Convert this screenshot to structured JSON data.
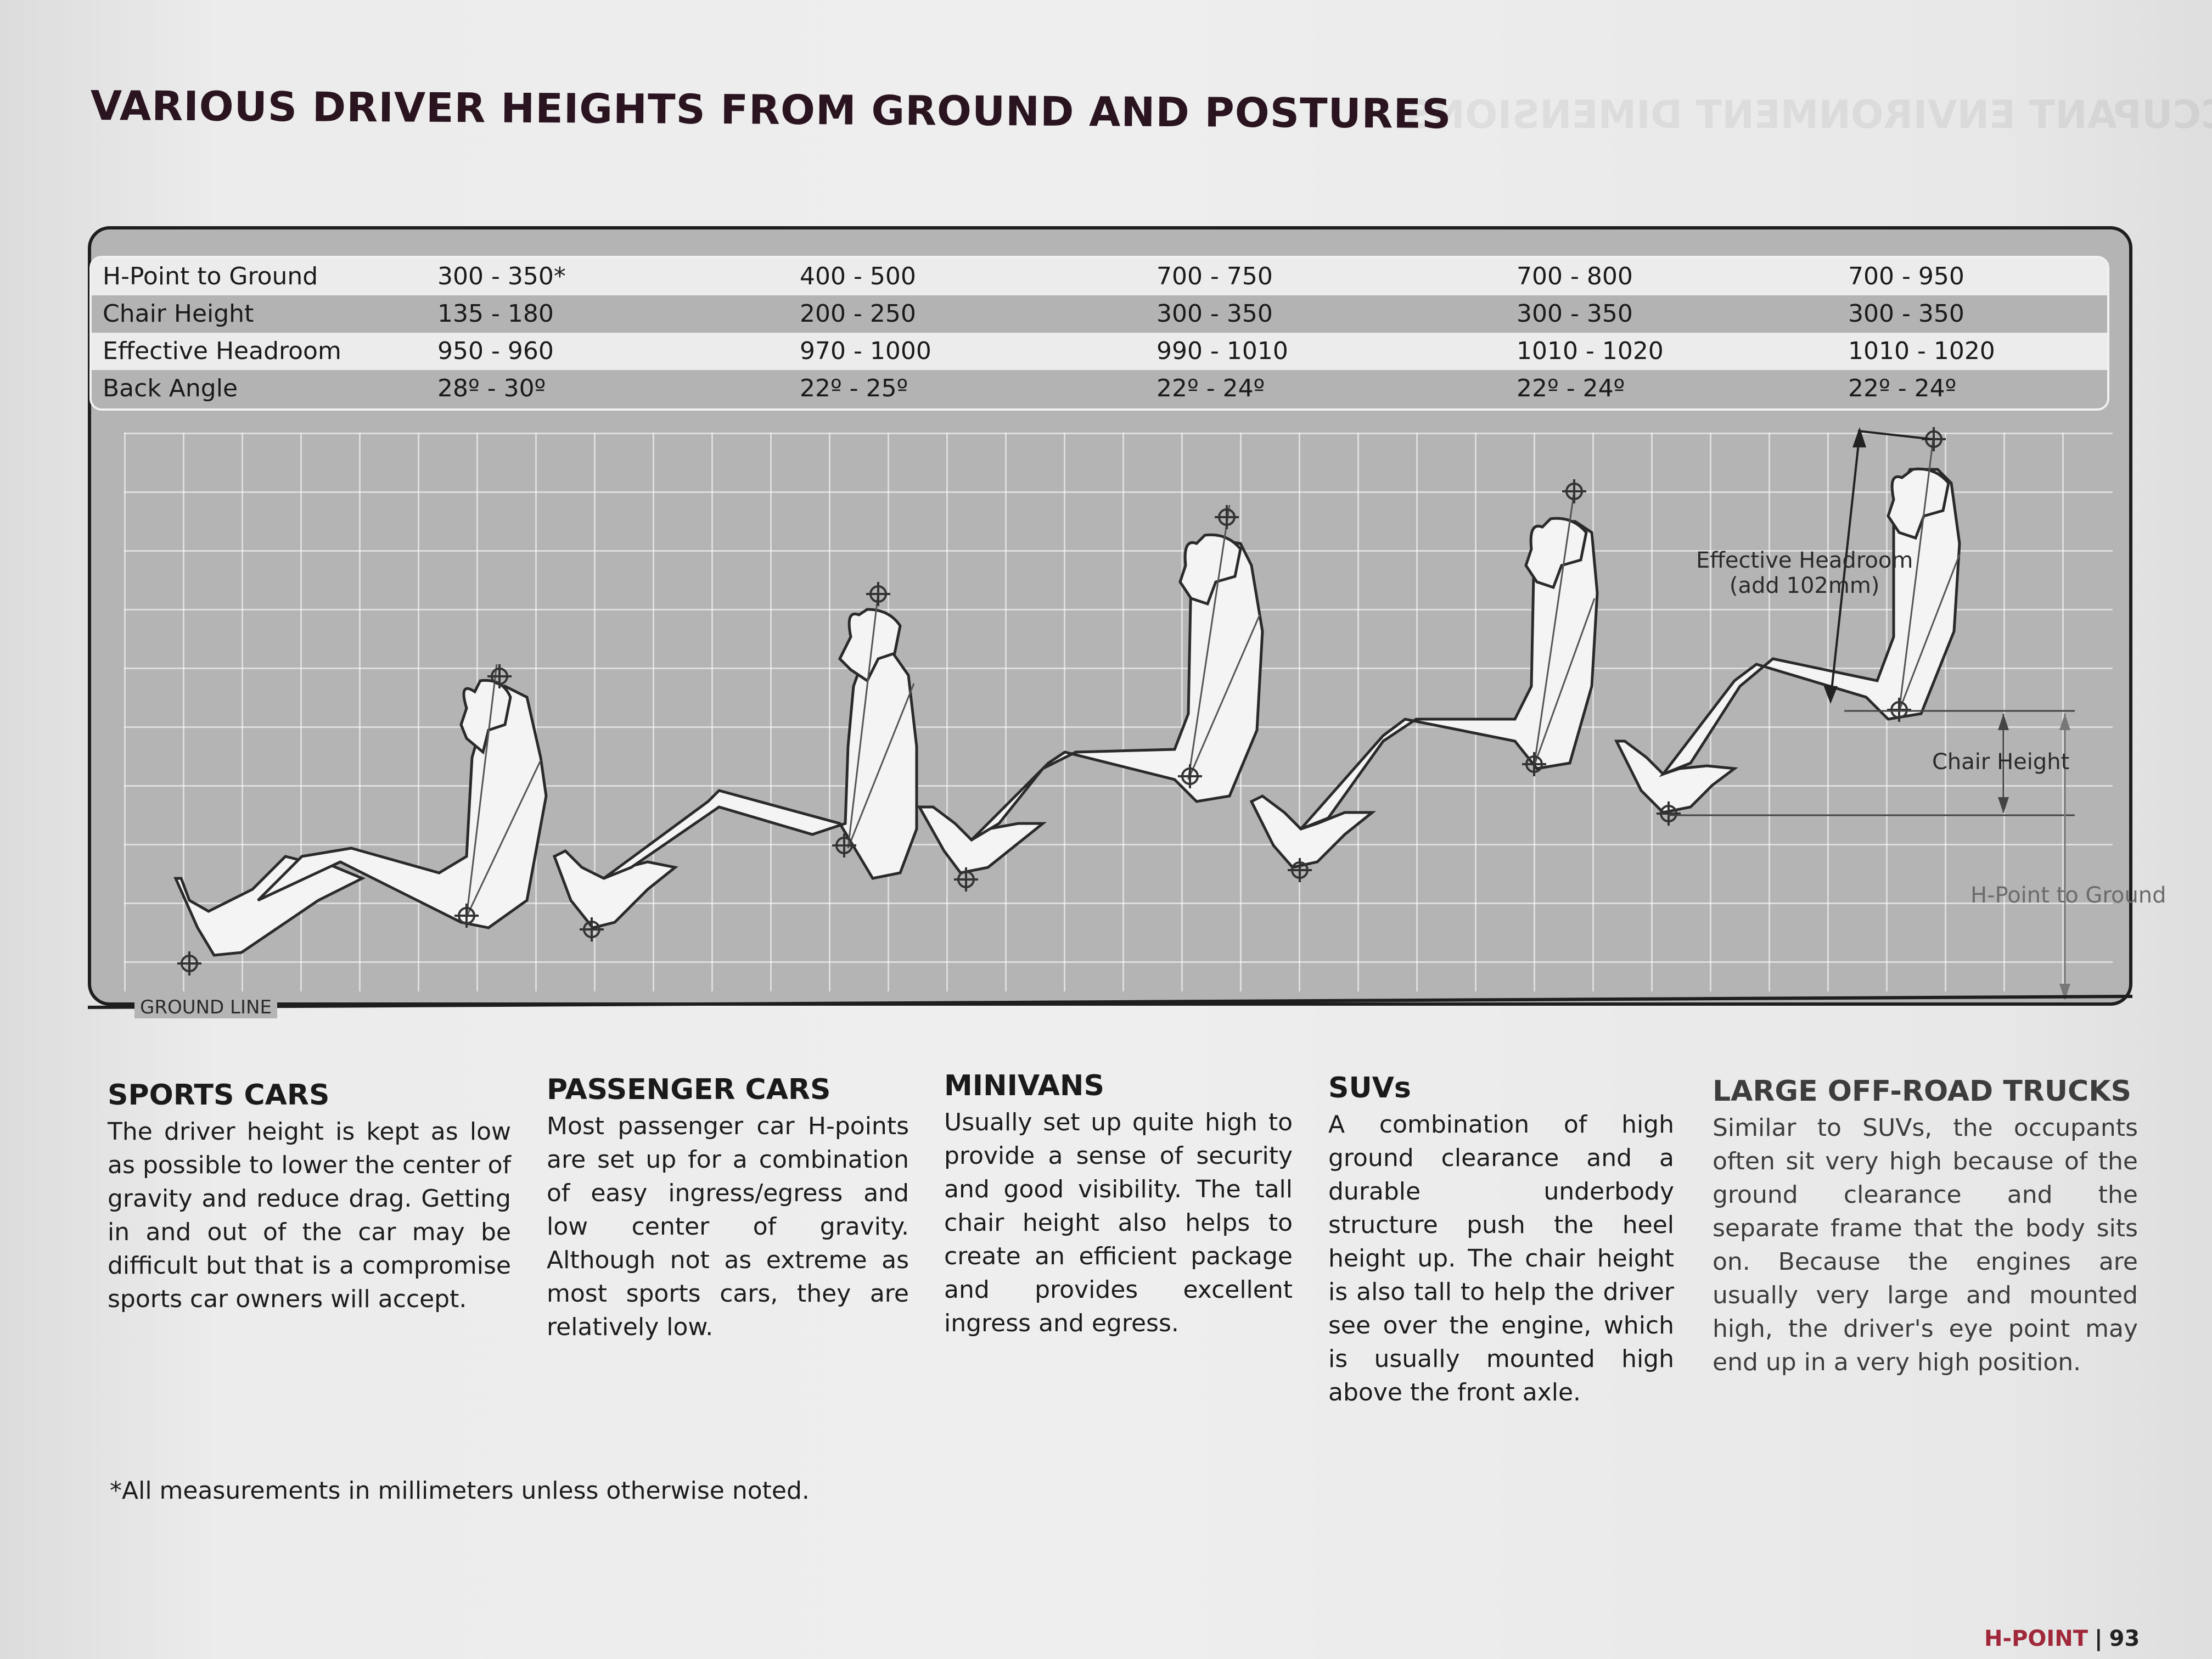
{
  "page": {
    "title": "VARIOUS DRIVER HEIGHTS FROM GROUND AND POSTURES",
    "ghost_title": "OCCUPANT ENVIRONMENT DIMENSIONS",
    "footnote": "*All measurements in millimeters unless otherwise noted.",
    "folio_brand": "H-POINT",
    "folio_separator": "|",
    "folio_number": "93"
  },
  "table": {
    "rows": [
      {
        "label": "H-Point to Ground",
        "values": [
          "300 - 350*",
          "400 - 500",
          "700 - 750",
          "700 - 800",
          "700 - 950"
        ]
      },
      {
        "label": "Chair Height",
        "values": [
          "135 - 180",
          "200 - 250",
          "300 - 350",
          "300 - 350",
          "300 - 350"
        ]
      },
      {
        "label": "Effective Headroom",
        "values": [
          "950 - 960",
          "970 - 1000",
          "990 - 1010",
          "1010 - 1020",
          "1010 - 1020"
        ]
      },
      {
        "label": "Back Angle",
        "values": [
          "28º - 30º",
          "22º - 25º",
          "22º - 24º",
          "22º - 24º",
          "22º - 24º"
        ]
      }
    ]
  },
  "diagram": {
    "ground_line_label": "GROUND LINE",
    "effective_headroom_label": "Effective Headroom",
    "effective_headroom_note": "(add 102mm)",
    "chair_height_label": "Chair Height",
    "h_point_label": "H-Point to Ground"
  },
  "sections": [
    {
      "heading": "SPORTS CARS",
      "body": "The driver height is kept as low as possible to lower the center of gravity and reduce drag. Getting in and out of the car may be difficult but that is a compromise sports car owners will accept."
    },
    {
      "heading": "PASSENGER CARS",
      "body": "Most passenger car H-points are set up for a combination of easy ingress/egress and low center of gravity. Although not as extreme as most sports cars, they are relatively low."
    },
    {
      "heading": "MINIVANS",
      "body": "Usually set up quite high to provide a sense of security and good visibility. The tall chair height also helps to create an efficient package and provides excellent ingress and egress."
    },
    {
      "heading": "SUVs",
      "body": "A combination of high ground clearance and a durable underbody structure push the heel height up. The chair height is also tall to help the driver see over the engine, which is usually mounted high above the front axle."
    },
    {
      "heading": "LARGE OFF-ROAD TRUCKS",
      "body": "Similar to SUVs, the occupants often sit very high because of the ground clearance and the separate frame that the body sits on. Because the engines are usually very large and mounted high, the driver's eye point may end up in a very high position."
    }
  ]
}
